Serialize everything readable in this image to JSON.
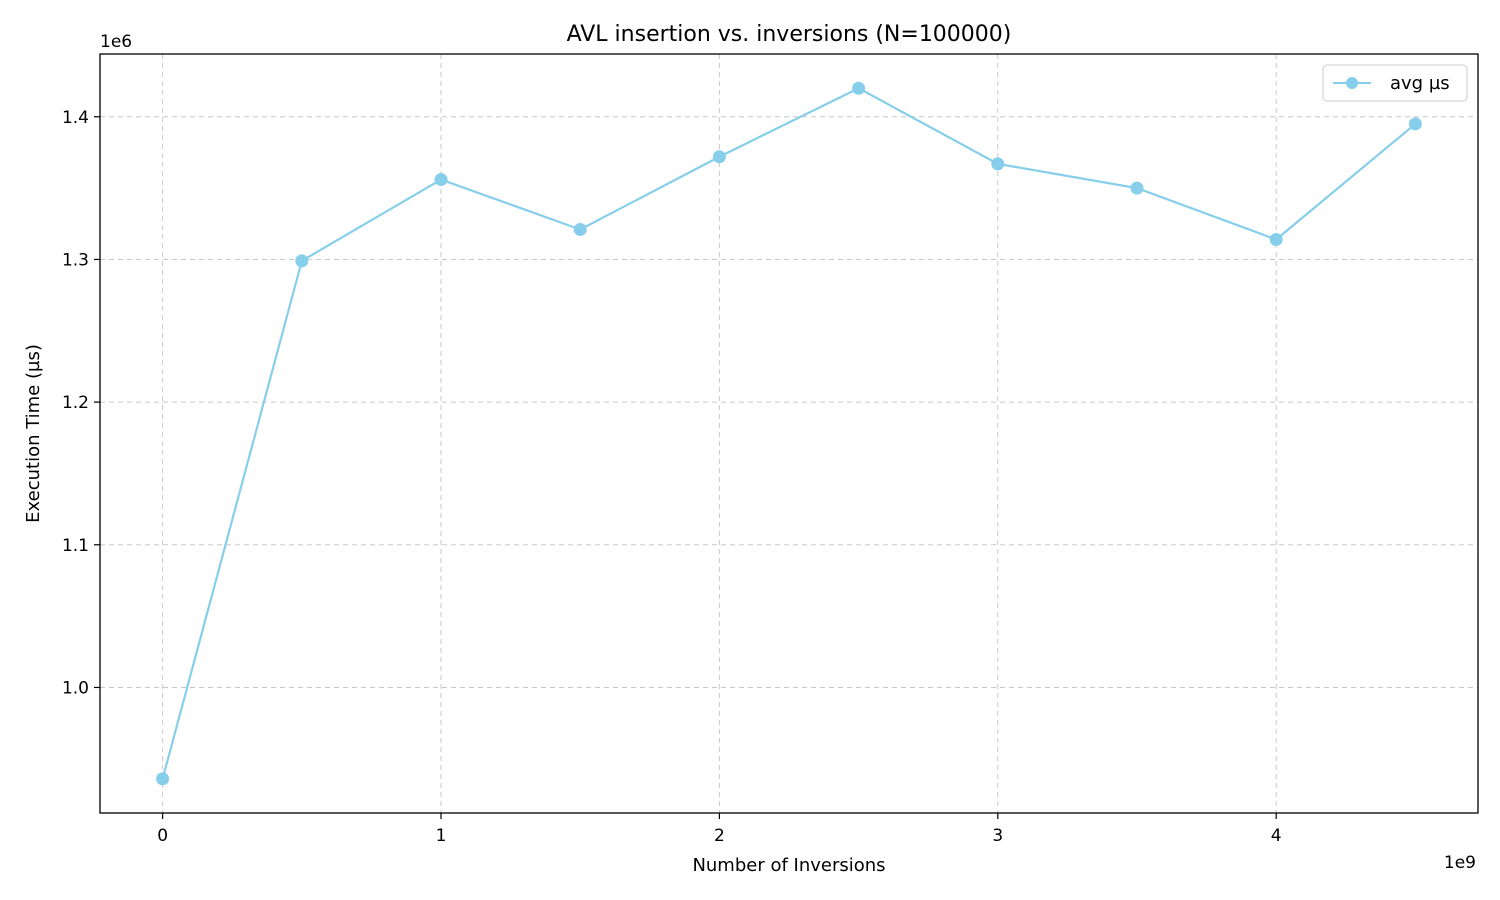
{
  "chart_data": {
    "type": "line",
    "title": "AVL insertion vs. inversions (N=100000)",
    "xlabel": "Number of Inversions",
    "ylabel": "Execution Time (µs)",
    "x_offset_text": "1e9",
    "y_offset_text": "1e6",
    "x_scale": 1000000000,
    "y_scale": 1000000,
    "xlim": [
      -0.225,
      4.725
    ],
    "ylim": [
      0.912,
      1.444
    ],
    "x_ticks": [
      0,
      1,
      2,
      3,
      4
    ],
    "x_tick_labels": [
      "0",
      "1",
      "2",
      "3",
      "4"
    ],
    "y_ticks": [
      1.0,
      1.1,
      1.2,
      1.3,
      1.4
    ],
    "y_tick_labels": [
      "1.0",
      "1.1",
      "1.2",
      "1.3",
      "1.4"
    ],
    "grid": true,
    "legend_position": "top-right",
    "series": [
      {
        "name": "avg µs",
        "color": "#87ceeb",
        "marker": "circle",
        "x": [
          0,
          500000000,
          1000000000,
          1500000000,
          2000000000,
          2500000000,
          3000000000,
          3500000000,
          4000000000,
          4500000000
        ],
        "y": [
          936000,
          1299000,
          1356000,
          1321000,
          1372000,
          1420000,
          1367000,
          1350000,
          1314000,
          1395000
        ]
      }
    ]
  }
}
